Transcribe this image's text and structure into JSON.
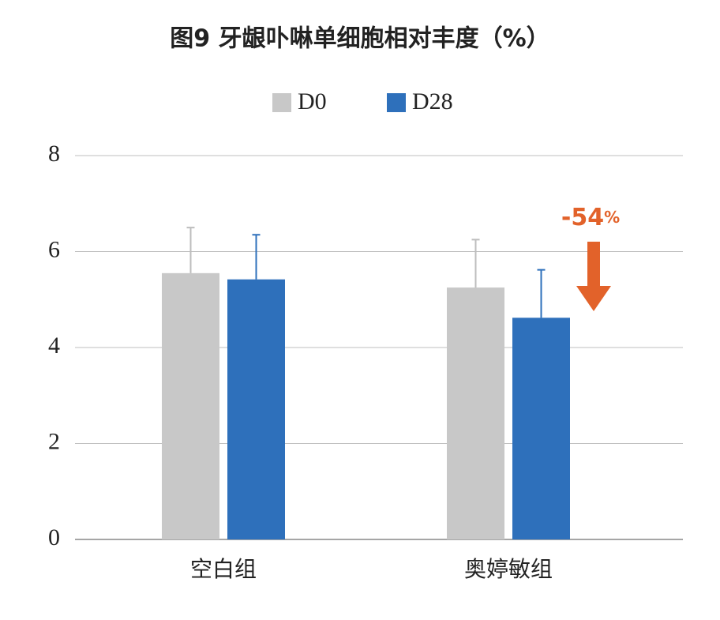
{
  "chart_data": {
    "type": "bar",
    "title": "图9 牙龈卟啉单细胞相对丰度（%）",
    "categories": [
      "空白组",
      "奥婷敏组"
    ],
    "series": [
      {
        "name": "D0",
        "color": "#c8c8c8",
        "error_color": "#bdbdbd",
        "values": [
          5.55,
          5.25
        ],
        "errors": [
          0.95,
          1.0
        ]
      },
      {
        "name": "D28",
        "color": "#2e70bb",
        "error_color": "#2e70bb",
        "values": [
          5.42,
          4.62
        ],
        "errors": [
          0.93,
          1.0
        ]
      }
    ],
    "ylim": [
      0,
      8
    ],
    "yticks": [
      0,
      2,
      4,
      6,
      8
    ],
    "grid": true,
    "annotation": {
      "text": "-54",
      "unit": "%",
      "color": "#e2622a"
    }
  }
}
